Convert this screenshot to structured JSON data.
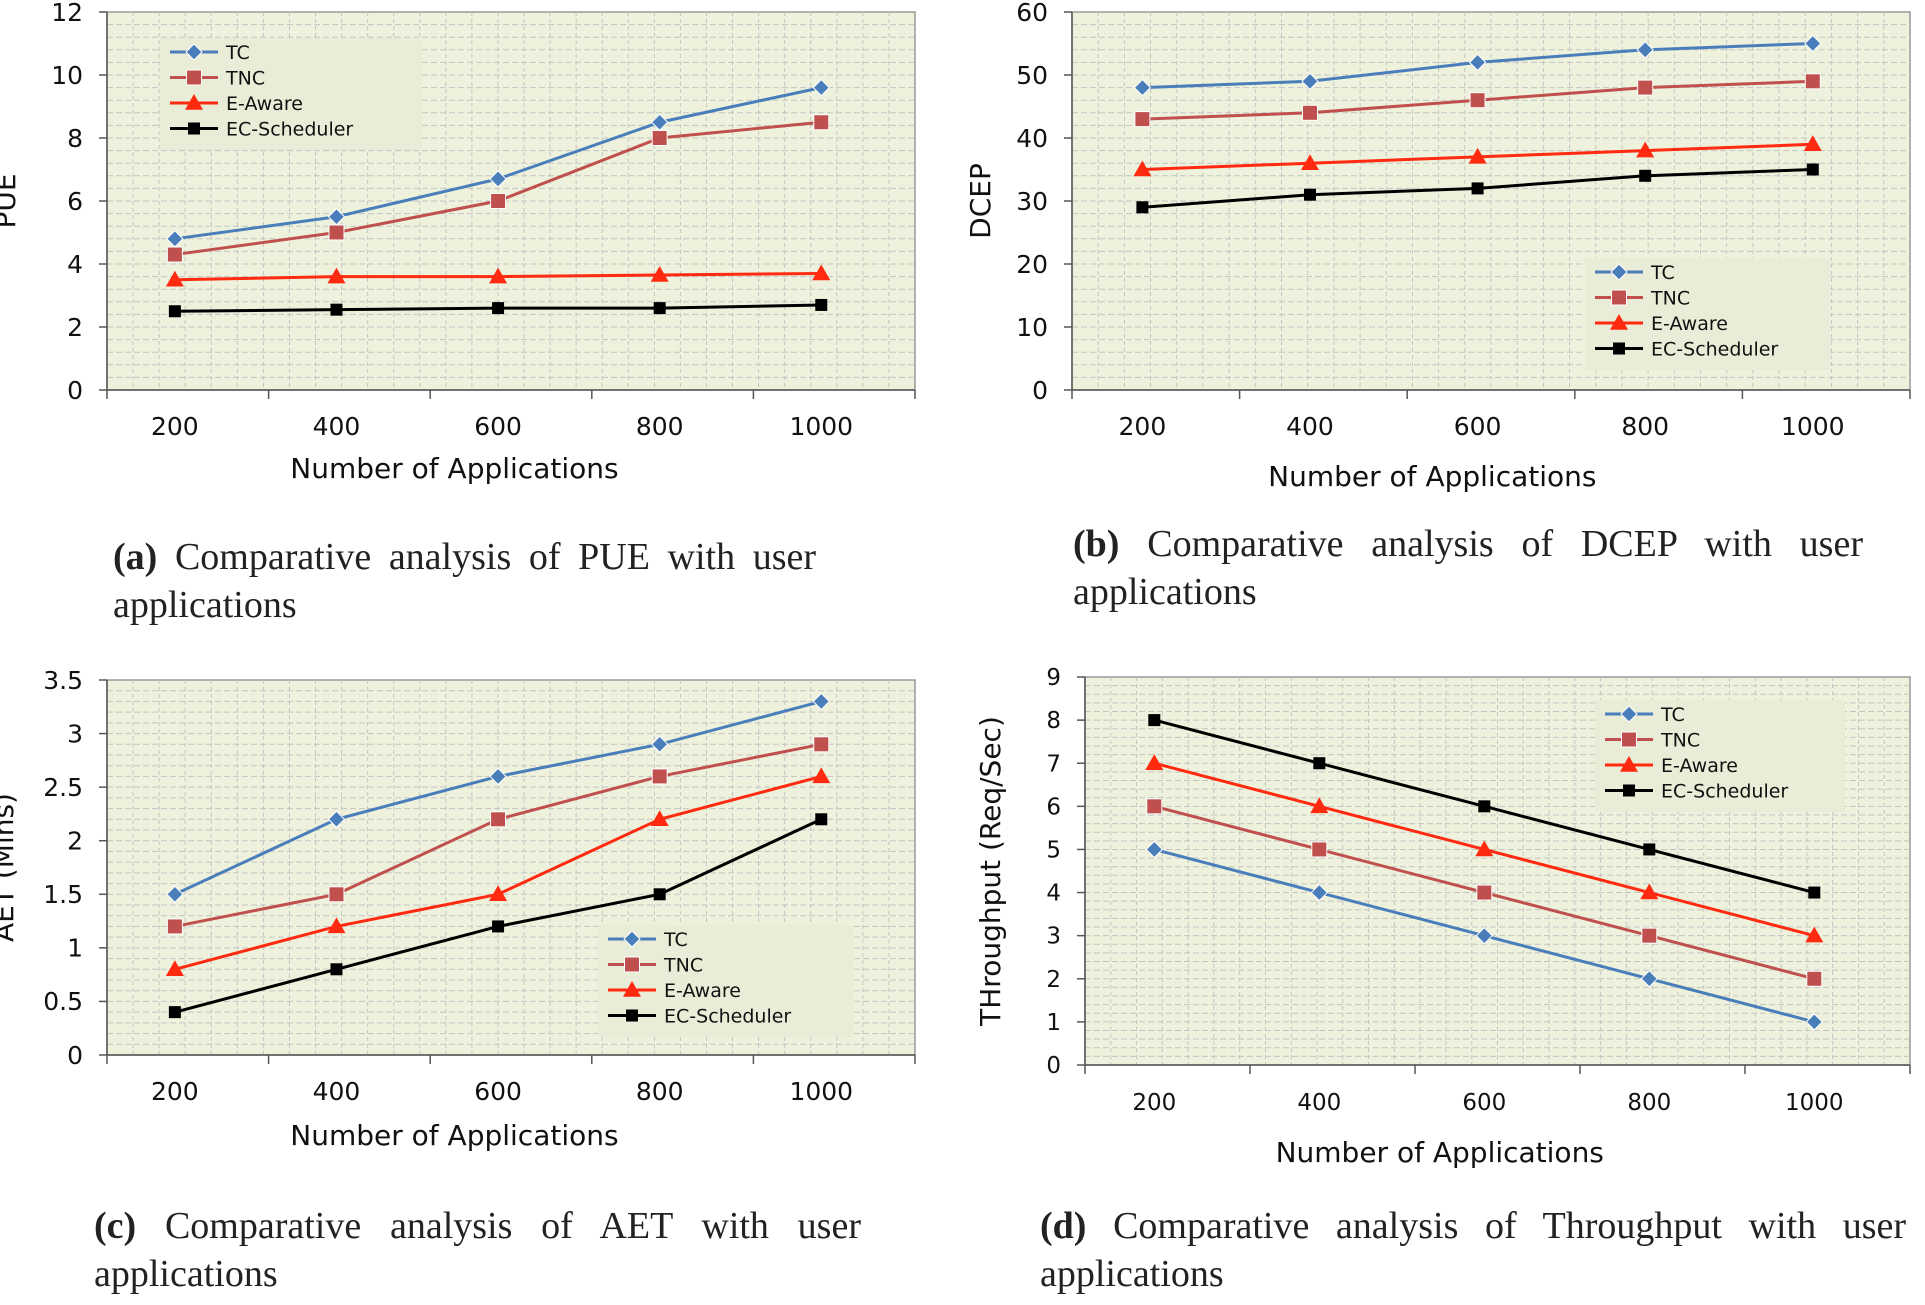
{
  "colors": {
    "TC": "#4a7ebb",
    "TNC": "#c0504d",
    "E-Aware": "#ff2a10",
    "EC-Scheduler": "#000000",
    "plot_bg": "#eef2dc",
    "grid": "#c4c4c4",
    "plot_border": "#999999",
    "legend_bg": "#e9ecd6"
  },
  "chart_data": [
    {
      "id": "a",
      "type": "line",
      "categories": [
        "200",
        "400",
        "600",
        "800",
        "1000"
      ],
      "xlabel": "Number of Applications",
      "ylabel": "PUE",
      "ylim": [
        0,
        12
      ],
      "yticks": [
        "0",
        "2",
        "4",
        "6",
        "8",
        "10",
        "12"
      ],
      "grid": true,
      "legend_position": "top-left",
      "series": [
        {
          "name": "TC",
          "marker": "diamond",
          "values": [
            4.8,
            5.5,
            6.7,
            8.5,
            9.6
          ]
        },
        {
          "name": "TNC",
          "marker": "square",
          "values": [
            4.3,
            5.0,
            6.0,
            8.0,
            8.5
          ]
        },
        {
          "name": "E-Aware",
          "marker": "triangle",
          "values": [
            3.5,
            3.6,
            3.6,
            3.65,
            3.7
          ]
        },
        {
          "name": "EC-Scheduler",
          "marker": "square-small",
          "values": [
            2.5,
            2.55,
            2.6,
            2.6,
            2.7
          ]
        }
      ],
      "caption_tag": "(a)",
      "caption_text": "Comparative analysis of PUE with user applications"
    },
    {
      "id": "b",
      "type": "line",
      "categories": [
        "200",
        "400",
        "600",
        "800",
        "1000"
      ],
      "xlabel": "Number of Applications",
      "ylabel": "DCEP",
      "ylim": [
        0,
        60
      ],
      "yticks": [
        "0",
        "10",
        "20",
        "30",
        "40",
        "50",
        "60"
      ],
      "grid": true,
      "legend_position": "bottom-right",
      "series": [
        {
          "name": "TC",
          "marker": "diamond",
          "values": [
            48,
            49,
            52,
            54,
            55
          ]
        },
        {
          "name": "TNC",
          "marker": "square",
          "values": [
            43,
            44,
            46,
            48,
            49
          ]
        },
        {
          "name": "E-Aware",
          "marker": "triangle",
          "values": [
            35,
            36,
            37,
            38,
            39
          ]
        },
        {
          "name": "EC-Scheduler",
          "marker": "square-small",
          "values": [
            29,
            31,
            32,
            34,
            35
          ]
        }
      ],
      "caption_tag": "(b)",
      "caption_text": "Comparative analysis of DCEP with user applications"
    },
    {
      "id": "c",
      "type": "line",
      "categories": [
        "200",
        "400",
        "600",
        "800",
        "1000"
      ],
      "xlabel": "Number of Applications",
      "ylabel": "AET (Mins)",
      "ylim": [
        0,
        3.5
      ],
      "yticks": [
        "0",
        "0.5",
        "1",
        "1.5",
        "2",
        "2.5",
        "3",
        "3.5"
      ],
      "grid": true,
      "legend_position": "bottom-right",
      "series": [
        {
          "name": "TC",
          "marker": "diamond",
          "values": [
            1.5,
            2.2,
            2.6,
            2.9,
            3.3
          ]
        },
        {
          "name": "TNC",
          "marker": "square",
          "values": [
            1.2,
            1.5,
            2.2,
            2.6,
            2.9
          ]
        },
        {
          "name": "E-Aware",
          "marker": "triangle",
          "values": [
            0.8,
            1.2,
            1.5,
            2.2,
            2.6
          ]
        },
        {
          "name": "EC-Scheduler",
          "marker": "square-small",
          "values": [
            0.4,
            0.8,
            1.2,
            1.5,
            2.2
          ]
        }
      ],
      "caption_tag": "(c)",
      "caption_text": "Comparative analysis of AET with user applications"
    },
    {
      "id": "d",
      "type": "line",
      "categories": [
        "200",
        "400",
        "600",
        "800",
        "1000"
      ],
      "xlabel": "Number of Applications",
      "ylabel": "THroughput (Req/Sec)",
      "ylim": [
        0,
        9
      ],
      "yticks": [
        "0",
        "1",
        "2",
        "3",
        "4",
        "5",
        "6",
        "7",
        "8",
        "9"
      ],
      "grid": true,
      "legend_position": "top-right",
      "series": [
        {
          "name": "TC",
          "marker": "diamond",
          "values": [
            5,
            4,
            3,
            2,
            1
          ]
        },
        {
          "name": "TNC",
          "marker": "square",
          "values": [
            6,
            5,
            4,
            3,
            2
          ]
        },
        {
          "name": "E-Aware",
          "marker": "triangle",
          "values": [
            7,
            6,
            5,
            4,
            3
          ]
        },
        {
          "name": "EC-Scheduler",
          "marker": "square-small",
          "values": [
            8,
            7,
            6,
            5,
            4
          ]
        }
      ],
      "caption_tag": "(d)",
      "caption_text": "Comparative analysis of Throughput with user applications"
    }
  ]
}
